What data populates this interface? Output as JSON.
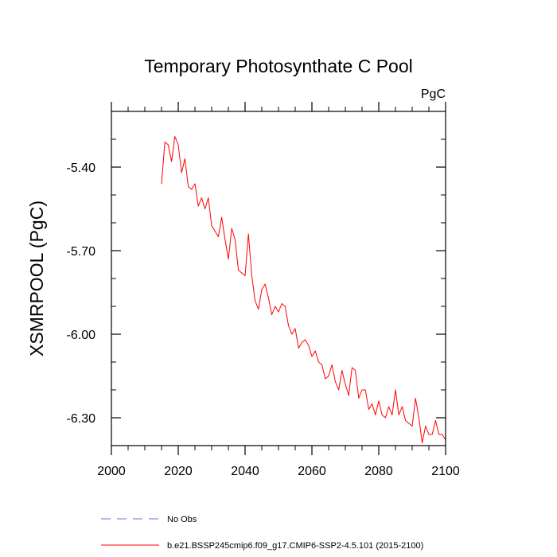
{
  "chart_data": {
    "type": "line",
    "title": "Temporary Photosynthate C Pool",
    "units_label": "PgC",
    "ylabel": "XSMRPOOL  (PgC)",
    "xlabel": "",
    "xlim": [
      2000,
      2100
    ],
    "ylim": [
      -6.4,
      -5.2
    ],
    "x_ticks": [
      2000,
      2020,
      2040,
      2060,
      2080,
      2100
    ],
    "x_tick_labels": [
      "2000",
      "2020",
      "2040",
      "2060",
      "2080",
      "2100"
    ],
    "y_ticks": [
      -5.4,
      -5.7,
      -6.0,
      -6.3
    ],
    "y_tick_labels": [
      "-5.40",
      "-5.70",
      "-6.00",
      "-6.30"
    ],
    "grid": false,
    "series": [
      {
        "name": "b.e21.BSSP245cmip6.f09_g17.CMIP6-SSP2-4.5.101 (2015-2100)",
        "color": "#ff0000",
        "style": "solid",
        "x": [
          2015,
          2016,
          2017,
          2018,
          2019,
          2020,
          2021,
          2022,
          2023,
          2024,
          2025,
          2026,
          2027,
          2028,
          2029,
          2030,
          2031,
          2032,
          2033,
          2034,
          2035,
          2036,
          2037,
          2038,
          2039,
          2040,
          2041,
          2042,
          2043,
          2044,
          2045,
          2046,
          2047,
          2048,
          2049,
          2050,
          2051,
          2052,
          2053,
          2054,
          2055,
          2056,
          2057,
          2058,
          2059,
          2060,
          2061,
          2062,
          2063,
          2064,
          2065,
          2066,
          2067,
          2068,
          2069,
          2070,
          2071,
          2072,
          2073,
          2074,
          2075,
          2076,
          2077,
          2078,
          2079,
          2080,
          2081,
          2082,
          2083,
          2084,
          2085,
          2086,
          2087,
          2088,
          2089,
          2090,
          2091,
          2092,
          2093,
          2094,
          2095,
          2096,
          2097,
          2098,
          2099,
          2100
        ],
        "values": [
          -5.46,
          -5.31,
          -5.32,
          -5.38,
          -5.29,
          -5.32,
          -5.42,
          -5.37,
          -5.47,
          -5.48,
          -5.46,
          -5.54,
          -5.51,
          -5.55,
          -5.51,
          -5.61,
          -5.63,
          -5.65,
          -5.58,
          -5.66,
          -5.73,
          -5.62,
          -5.66,
          -5.77,
          -5.78,
          -5.79,
          -5.64,
          -5.79,
          -5.88,
          -5.91,
          -5.84,
          -5.82,
          -5.87,
          -5.93,
          -5.9,
          -5.92,
          -5.89,
          -5.9,
          -5.97,
          -6.0,
          -5.98,
          -6.05,
          -6.03,
          -6.02,
          -6.04,
          -6.08,
          -6.06,
          -6.1,
          -6.11,
          -6.16,
          -6.15,
          -6.11,
          -6.17,
          -6.2,
          -6.13,
          -6.18,
          -6.22,
          -6.12,
          -6.13,
          -6.23,
          -6.2,
          -6.2,
          -6.27,
          -6.25,
          -6.29,
          -6.24,
          -6.29,
          -6.3,
          -6.26,
          -6.29,
          -6.2,
          -6.29,
          -6.26,
          -6.31,
          -6.32,
          -6.33,
          -6.23,
          -6.3,
          -6.39,
          -6.33,
          -6.36,
          -6.36,
          -6.31,
          -6.36,
          -6.36,
          -6.38
        ]
      }
    ],
    "legend": {
      "placement": "bottom-left",
      "items": [
        {
          "label": "No Obs",
          "color": "#6666ff",
          "style": "dashed"
        },
        {
          "label": "b.e21.BSSP245cmip6.f09_g17.CMIP6-SSP2-4.5.101 (2015-2100)",
          "color": "#ff0000",
          "style": "solid"
        }
      ]
    }
  }
}
